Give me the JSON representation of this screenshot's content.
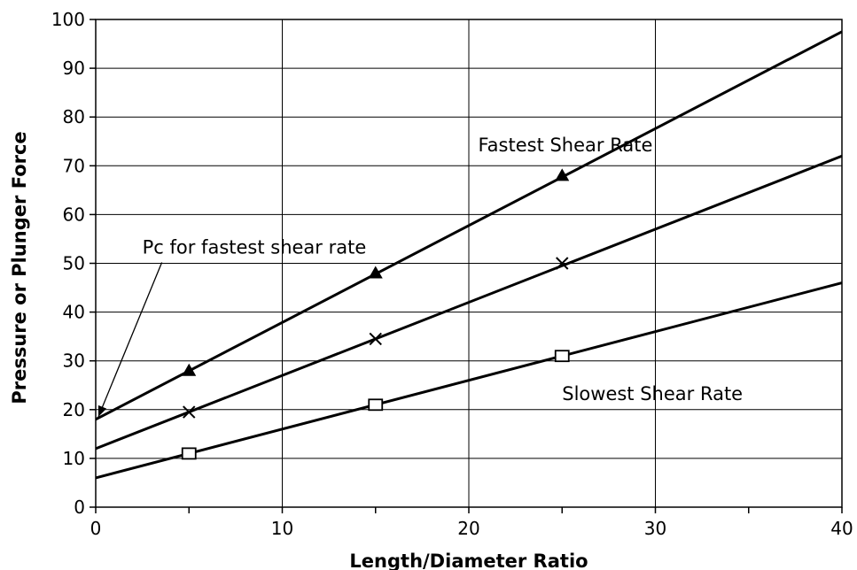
{
  "chart_data": {
    "type": "line",
    "title": "",
    "xlabel": "Length/Diameter Ratio",
    "ylabel": "Pressure or Plunger Force",
    "xlim": [
      0,
      40
    ],
    "ylim": [
      0,
      100
    ],
    "xticks": [
      0,
      10,
      20,
      30,
      40
    ],
    "yticks": [
      0,
      10,
      20,
      30,
      40,
      50,
      60,
      70,
      80,
      90,
      100
    ],
    "grid": true,
    "series": [
      {
        "marker": "triangle",
        "line": {
          "x": [
            0,
            40
          ],
          "y": [
            18,
            97.5
          ]
        },
        "points": {
          "x": [
            5,
            15,
            25
          ],
          "y": [
            28,
            48,
            68
          ]
        }
      },
      {
        "marker": "x",
        "line": {
          "x": [
            0,
            40
          ],
          "y": [
            12,
            72
          ]
        },
        "points": {
          "x": [
            5,
            15,
            25
          ],
          "y": [
            19.5,
            34.5,
            50
          ]
        }
      },
      {
        "marker": "square",
        "line": {
          "x": [
            0,
            40
          ],
          "y": [
            6,
            46
          ]
        },
        "points": {
          "x": [
            5,
            15,
            25
          ],
          "y": [
            11,
            21,
            31
          ]
        }
      }
    ],
    "annotations": [
      {
        "text": "Fastest Shear Rate",
        "x": 20.5,
        "y": 73
      },
      {
        "text": "Slowest Shear Rate",
        "x": 25,
        "y": 22
      },
      {
        "text": "Pc for fastest shear rate",
        "x": 2.5,
        "y": 52,
        "arrow_to": {
          "x": 0,
          "y": 18
        }
      }
    ]
  }
}
